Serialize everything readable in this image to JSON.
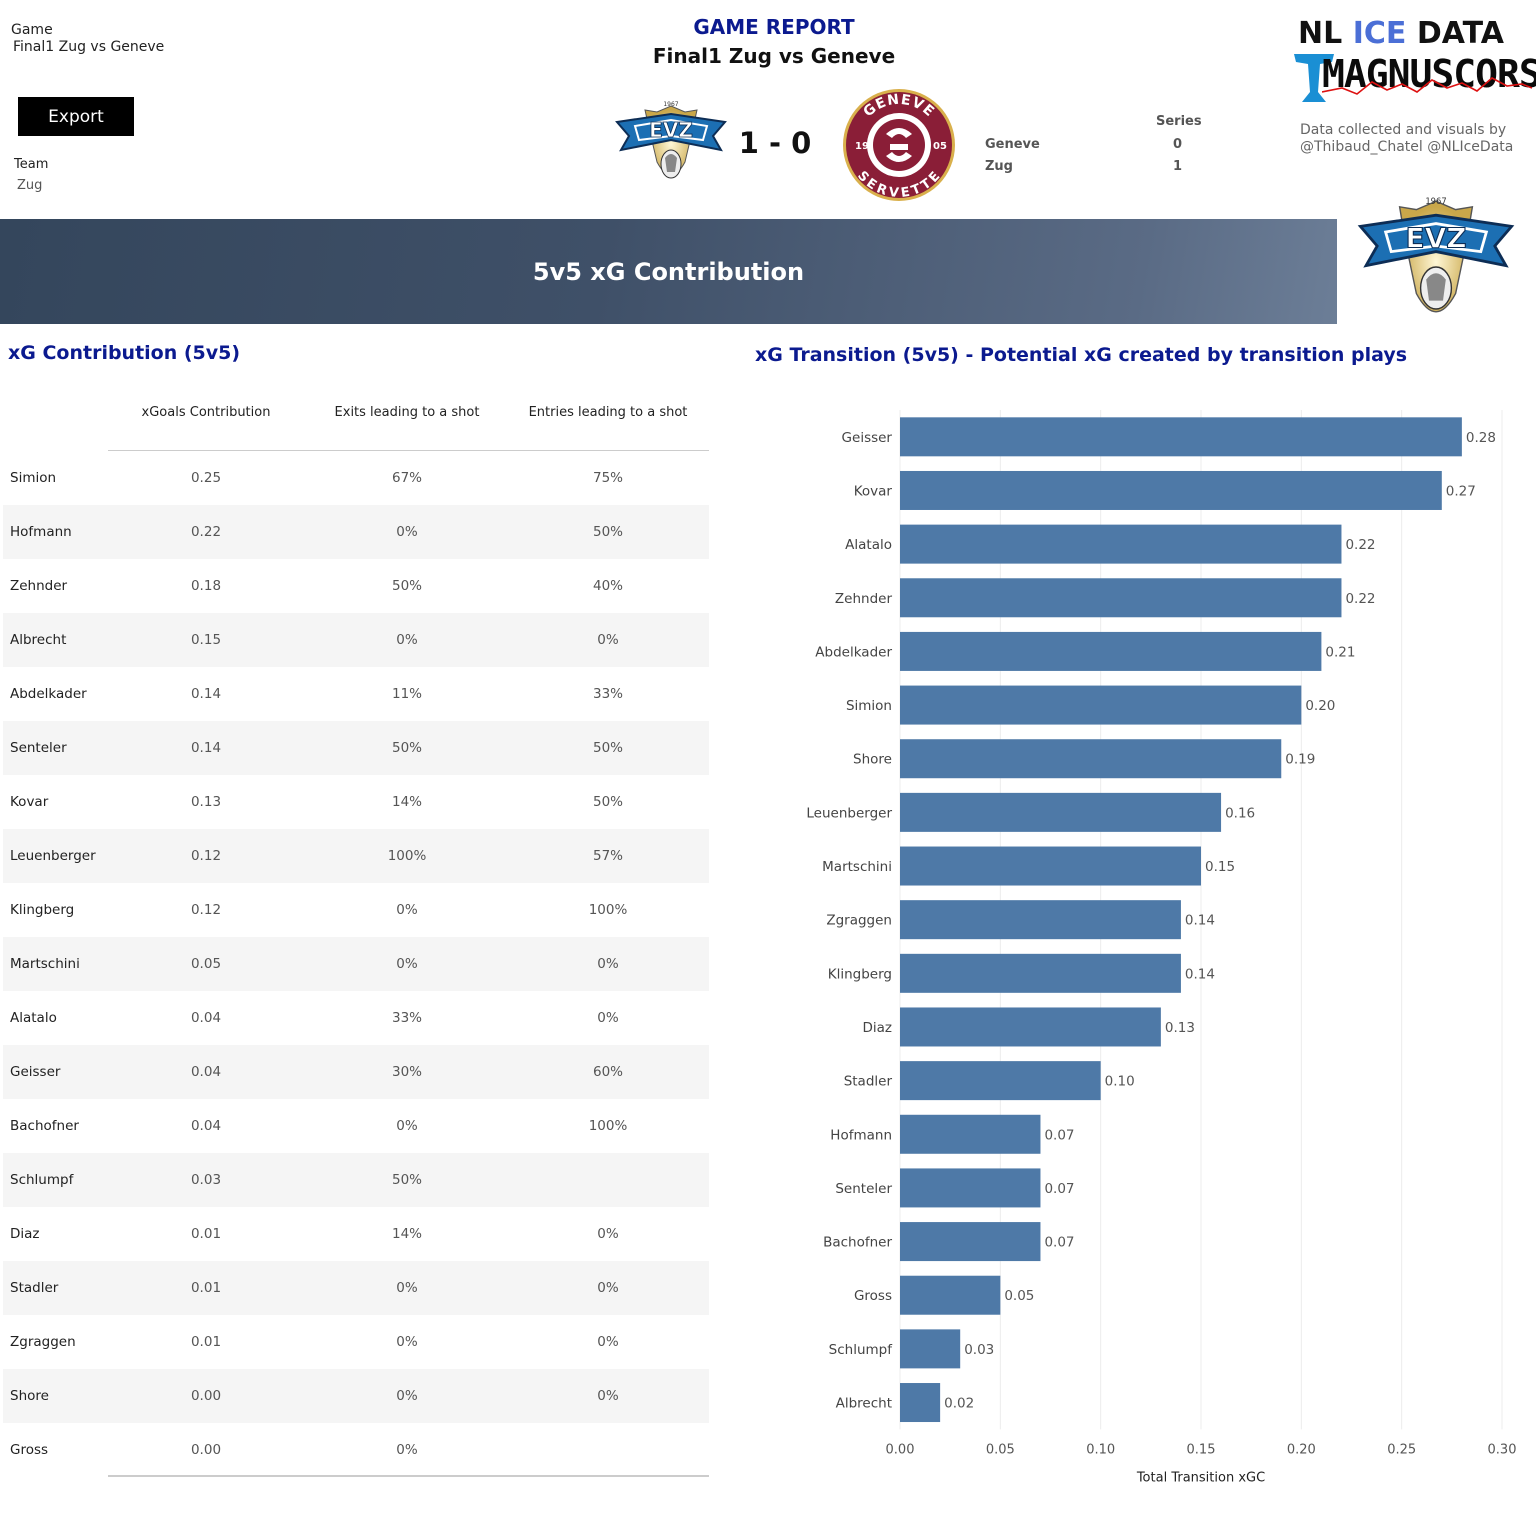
{
  "filters": {
    "game_label": "Game",
    "game_value": "Final1 Zug vs Geneve",
    "export_label": "Export",
    "team_label": "Team",
    "team_value": "Zug"
  },
  "header": {
    "title": "GAME REPORT",
    "subtitle": "Final1 Zug vs Geneve",
    "score": "1 - 0",
    "series_label": "Series",
    "series": [
      {
        "team": "Geneve",
        "wins": "0"
      },
      {
        "team": "Zug",
        "wins": "1"
      }
    ],
    "brand_words": [
      "NL",
      "ICE",
      "DATA"
    ],
    "brand_sub": "MAGNUSCORSI",
    "credit_line1": "Data collected and visuals by",
    "credit_line2": "@Thibaud_Chatel @NLIceData"
  },
  "logos": {
    "home_text": "EVZ",
    "home_year": "1967",
    "away_top": "GENEVE",
    "away_bottom": "SERVETTE",
    "away_left": "19",
    "away_right": "05",
    "home_color": "#1c6fb3",
    "away_color": "#8a1e37"
  },
  "banner": {
    "title": "5v5 xG Contribution"
  },
  "table": {
    "title": "xG Contribution (5v5)",
    "columns": [
      "xGoals Contribution",
      "Exits leading to a shot",
      "Entries leading to a shot"
    ],
    "rows": [
      {
        "player": "Simion",
        "xgc": "0.25",
        "exits": "67%",
        "entries": "75%"
      },
      {
        "player": "Hofmann",
        "xgc": "0.22",
        "exits": "0%",
        "entries": "50%"
      },
      {
        "player": "Zehnder",
        "xgc": "0.18",
        "exits": "50%",
        "entries": "40%"
      },
      {
        "player": "Albrecht",
        "xgc": "0.15",
        "exits": "0%",
        "entries": "0%"
      },
      {
        "player": "Abdelkader",
        "xgc": "0.14",
        "exits": "11%",
        "entries": "33%"
      },
      {
        "player": "Senteler",
        "xgc": "0.14",
        "exits": "50%",
        "entries": "50%"
      },
      {
        "player": "Kovar",
        "xgc": "0.13",
        "exits": "14%",
        "entries": "50%"
      },
      {
        "player": "Leuenberger",
        "xgc": "0.12",
        "exits": "100%",
        "entries": "57%"
      },
      {
        "player": "Klingberg",
        "xgc": "0.12",
        "exits": "0%",
        "entries": "100%"
      },
      {
        "player": "Martschini",
        "xgc": "0.05",
        "exits": "0%",
        "entries": "0%"
      },
      {
        "player": "Alatalo",
        "xgc": "0.04",
        "exits": "33%",
        "entries": "0%"
      },
      {
        "player": "Geisser",
        "xgc": "0.04",
        "exits": "30%",
        "entries": "60%"
      },
      {
        "player": "Bachofner",
        "xgc": "0.04",
        "exits": "0%",
        "entries": "100%"
      },
      {
        "player": "Schlumpf",
        "xgc": "0.03",
        "exits": "50%",
        "entries": ""
      },
      {
        "player": "Diaz",
        "xgc": "0.01",
        "exits": "14%",
        "entries": "0%"
      },
      {
        "player": "Stadler",
        "xgc": "0.01",
        "exits": "0%",
        "entries": "0%"
      },
      {
        "player": "Zgraggen",
        "xgc": "0.01",
        "exits": "0%",
        "entries": "0%"
      },
      {
        "player": "Shore",
        "xgc": "0.00",
        "exits": "0%",
        "entries": "0%"
      },
      {
        "player": "Gross",
        "xgc": "0.00",
        "exits": "0%",
        "entries": ""
      }
    ]
  },
  "chart_data": {
    "type": "bar",
    "orientation": "horizontal",
    "title": "xG Transition (5v5) - Potential xG created by transition plays",
    "xlabel": "Total Transition xGC",
    "ylabel": "",
    "xlim": [
      0,
      0.3
    ],
    "xticks": [
      "0.00",
      "0.05",
      "0.10",
      "0.15",
      "0.20",
      "0.25",
      "0.30"
    ],
    "grid": "vertical",
    "bar_color": "#4e79a7",
    "categories": [
      "Geisser",
      "Kovar",
      "Alatalo",
      "Zehnder",
      "Abdelkader",
      "Simion",
      "Shore",
      "Leuenberger",
      "Martschini",
      "Zgraggen",
      "Klingberg",
      "Diaz",
      "Stadler",
      "Hofmann",
      "Senteler",
      "Bachofner",
      "Gross",
      "Schlumpf",
      "Albrecht"
    ],
    "values": [
      0.28,
      0.27,
      0.22,
      0.22,
      0.21,
      0.2,
      0.19,
      0.16,
      0.15,
      0.14,
      0.14,
      0.13,
      0.1,
      0.07,
      0.07,
      0.07,
      0.05,
      0.03,
      0.02
    ],
    "labels": [
      "0.28",
      "0.27",
      "0.22",
      "0.22",
      "0.21",
      "0.20",
      "0.19",
      "0.16",
      "0.15",
      "0.14",
      "0.14",
      "0.13",
      "0.10",
      "0.07",
      "0.07",
      "0.07",
      "0.05",
      "0.03",
      "0.02"
    ]
  }
}
